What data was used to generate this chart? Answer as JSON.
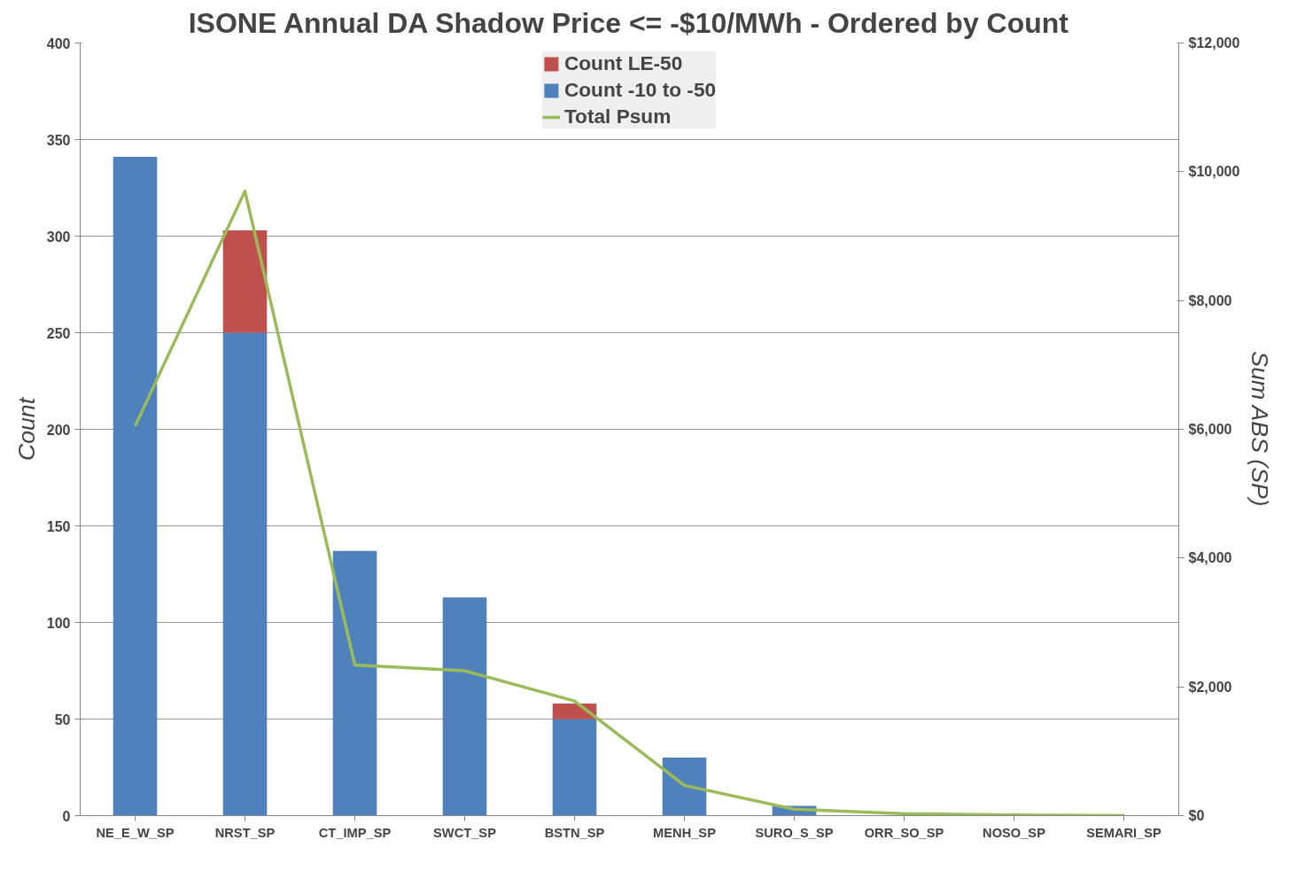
{
  "chart_data": {
    "type": "bar",
    "title": "ISONE Annual DA Shadow Price <= -$10/MWh - Ordered by Count",
    "categories": [
      "NE_E_W_SP",
      "NRST_SP",
      "CT_IMP_SP",
      "SWCT_SP",
      "BSTN_SP",
      "MENH_SP",
      "SURO_S_SP",
      "ORR_SO_SP",
      "NOSO_SP",
      "SEMARI_SP"
    ],
    "stacked": true,
    "series": [
      {
        "name": "Count -10 to -50",
        "color": "#4f81bd",
        "values": [
          341,
          250,
          137,
          113,
          50,
          30,
          5,
          0,
          0,
          0
        ]
      },
      {
        "name": "Count LE-50",
        "color": "#c0504d",
        "values": [
          0,
          53,
          0,
          0,
          8,
          0,
          0,
          0,
          0,
          0
        ]
      },
      {
        "name": "Total Psum",
        "type": "line",
        "axis": "y2",
        "color": "#9bbb59",
        "values": [
          6050,
          9700,
          2340,
          2250,
          1780,
          470,
          100,
          30,
          10,
          0
        ]
      }
    ],
    "ylabel": "Count",
    "y2label": "Sum ABS (SP)",
    "ylim": [
      0,
      400
    ],
    "yticks": [
      0,
      50,
      100,
      150,
      200,
      250,
      300,
      350,
      400
    ],
    "y2lim": [
      0,
      12000
    ],
    "y2ticks": [
      {
        "value": 0,
        "label": "$0"
      },
      {
        "value": 2000,
        "label": "$2,000"
      },
      {
        "value": 4000,
        "label": "$4,000"
      },
      {
        "value": 6000,
        "label": "$6,000"
      },
      {
        "value": 8000,
        "label": "$8,000"
      },
      {
        "value": 10000,
        "label": "$10,000"
      },
      {
        "value": 12000,
        "label": "$12,000"
      }
    ],
    "grid": "y",
    "legend": "top"
  }
}
